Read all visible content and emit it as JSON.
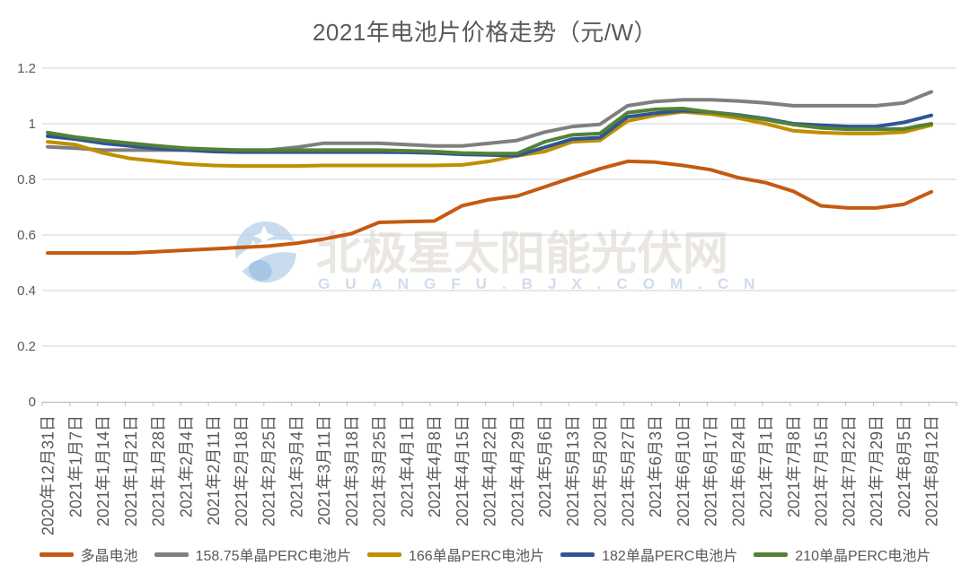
{
  "title": "2021年电池片价格走势（元/W）",
  "watermark": {
    "text": "北极星太阳能光伏网",
    "subtext": "GUANGFU.BJX.COM.CN",
    "logo": "polaris-solar-logo",
    "text_color": "#D9D0C9",
    "subtext_color": "#BDCFE6",
    "logo_color": "#B7D0EA"
  },
  "chart_data": {
    "type": "line",
    "title": "2021年电池片价格走势（元/W）",
    "xlabel": "",
    "ylabel": "",
    "ylim": [
      0,
      1.2
    ],
    "yticks": [
      0,
      0.2,
      0.4,
      0.6,
      0.8,
      1,
      1.2
    ],
    "ytick_labels": [
      "0",
      "0.2",
      "0.4",
      "0.6",
      "0.8",
      "1",
      "1.2"
    ],
    "grid": true,
    "legend_position": "bottom",
    "categories": [
      "2020年12月31日",
      "2021年1月7日",
      "2021年1月14日",
      "2021年1月21日",
      "2021年1月28日",
      "2021年2月4日",
      "2021年2月11日",
      "2021年2月18日",
      "2021年2月25日",
      "2021年3月4日",
      "2021年3月11日",
      "2021年3月18日",
      "2021年3月25日",
      "2021年4月1日",
      "2021年4月8日",
      "2021年4月15日",
      "2021年4月22日",
      "2021年4月29日",
      "2021年5月6日",
      "2021年5月13日",
      "2021年5月20日",
      "2021年5月27日",
      "2021年6月3日",
      "2021年6月10日",
      "2021年6月17日",
      "2021年6月24日",
      "2021年7月1日",
      "2021年7月8日",
      "2021年7月15日",
      "2021年7月22日",
      "2021年7月29日",
      "2021年8月5日",
      "2021年8月12日"
    ],
    "series": [
      {
        "name": "多晶电池",
        "color": "#C55A11",
        "values": [
          0.535,
          0.535,
          0.535,
          0.535,
          0.54,
          0.545,
          0.55,
          0.555,
          0.56,
          0.57,
          0.585,
          0.605,
          0.645,
          0.648,
          0.65,
          0.705,
          0.727,
          0.74,
          0.773,
          0.806,
          0.838,
          0.865,
          0.862,
          0.85,
          0.835,
          0.806,
          0.788,
          0.757,
          0.705,
          0.697,
          0.697,
          0.71,
          0.755
        ]
      },
      {
        "name": "158.75单晶PERC电池片",
        "color": "#7F7F7F",
        "values": [
          0.917,
          0.912,
          0.905,
          0.905,
          0.905,
          0.905,
          0.905,
          0.905,
          0.905,
          0.915,
          0.93,
          0.93,
          0.93,
          0.925,
          0.92,
          0.92,
          0.93,
          0.94,
          0.97,
          0.99,
          0.998,
          1.065,
          1.08,
          1.086,
          1.086,
          1.082,
          1.075,
          1.065,
          1.065,
          1.065,
          1.065,
          1.075,
          1.115
        ]
      },
      {
        "name": "166单晶PERC电池片",
        "color": "#BF8F00",
        "values": [
          0.935,
          0.925,
          0.895,
          0.875,
          0.865,
          0.855,
          0.85,
          0.848,
          0.848,
          0.848,
          0.85,
          0.85,
          0.85,
          0.85,
          0.85,
          0.852,
          0.865,
          0.885,
          0.9,
          0.935,
          0.94,
          1.01,
          1.03,
          1.043,
          1.035,
          1.02,
          1.0,
          0.975,
          0.968,
          0.965,
          0.965,
          0.97,
          0.995
        ]
      },
      {
        "name": "182单晶PERC电池片",
        "color": "#2F5597",
        "values": [
          0.955,
          0.945,
          0.93,
          0.92,
          0.91,
          0.905,
          0.9,
          0.898,
          0.898,
          0.898,
          0.898,
          0.898,
          0.898,
          0.897,
          0.895,
          0.89,
          0.888,
          0.885,
          0.915,
          0.945,
          0.95,
          1.025,
          1.038,
          1.047,
          1.042,
          1.032,
          1.018,
          1.0,
          0.995,
          0.99,
          0.99,
          1.005,
          1.03
        ]
      },
      {
        "name": "210单晶PERC电池片",
        "color": "#538135",
        "values": [
          0.968,
          0.952,
          0.94,
          0.93,
          0.92,
          0.912,
          0.908,
          0.905,
          0.905,
          0.905,
          0.905,
          0.905,
          0.905,
          0.903,
          0.9,
          0.895,
          0.893,
          0.893,
          0.935,
          0.96,
          0.965,
          1.04,
          1.052,
          1.055,
          1.042,
          1.03,
          1.015,
          0.997,
          0.985,
          0.98,
          0.98,
          0.982,
          1.0
        ]
      }
    ]
  }
}
